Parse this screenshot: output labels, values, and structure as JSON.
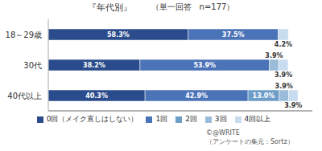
{
  "chart_data": {
    "type": "bar",
    "orientation": "horizontal",
    "stacked": true,
    "title": "『年代別』",
    "subtitle": "（単一回答　n=177）",
    "categories": [
      "18～29歳",
      "30代",
      "40代以上"
    ],
    "series": [
      {
        "name": "0回（メイク直しはしない）",
        "color": "#2B4C8C",
        "values": [
          58.3,
          38.2,
          40.3
        ],
        "value_labels": [
          "58.3%",
          "38.2%",
          "40.3%"
        ]
      },
      {
        "name": "1回",
        "color": "#4B73B8",
        "values": [
          37.5,
          53.9,
          42.9
        ],
        "value_labels": [
          "37.5%",
          "53.9%",
          "42.9%"
        ]
      },
      {
        "name": "2回",
        "color": "#6E9DC8",
        "values": [
          0.0,
          0.0,
          13.0
        ],
        "value_labels": [
          null,
          null,
          "13.0%"
        ]
      },
      {
        "name": "3回",
        "color": "#9ABCD8",
        "values": [
          0.0,
          3.9,
          3.9
        ],
        "value_labels": [
          null,
          "3.9%",
          "3.9%"
        ]
      },
      {
        "name": "4回以上",
        "color": "#C8DCF0",
        "values": [
          4.2,
          3.9,
          3.9
        ],
        "value_labels": [
          "4.2%",
          "3.9%",
          "3.9%"
        ]
      }
    ],
    "xlim": [
      0,
      110
    ],
    "grid": false,
    "legend": "bottom",
    "tick_labels": "y",
    "data_labels": true,
    "annotations": [
      "©@WRITE",
      "（アンケートの集元：Sortz）"
    ]
  }
}
